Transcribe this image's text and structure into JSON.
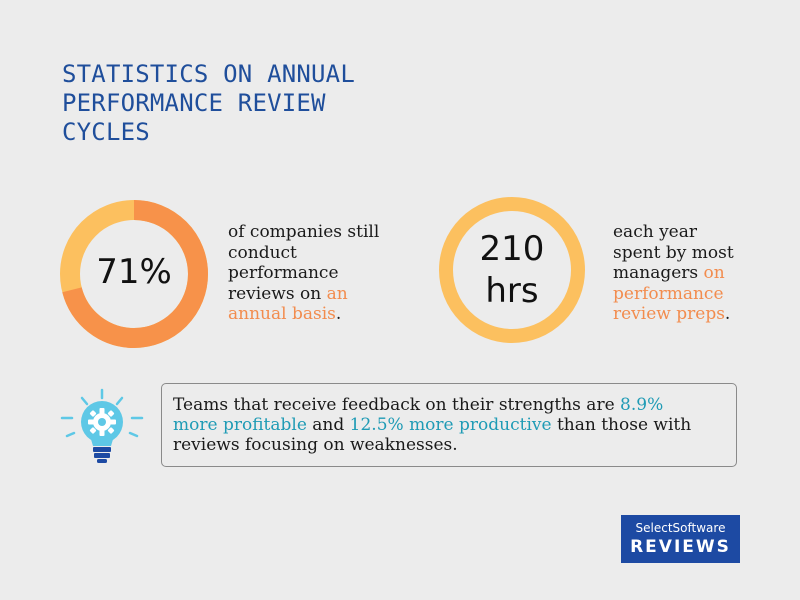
{
  "title_lines": [
    "STATISTICS ON ANNUAL",
    "PERFORMANCE REVIEW",
    "CYCLES"
  ],
  "stat1": {
    "value": "71%",
    "percent": 71,
    "desc_lines": [
      "of companies still",
      "conduct",
      "performance"
    ],
    "desc_line4_plain": "reviews on ",
    "desc_line4_highlight": "an",
    "desc_line5_highlight": "annual basis",
    "desc_line5_end": "."
  },
  "stat2": {
    "value_line1": "210",
    "value_line2": "hrs",
    "desc_lines": [
      "each year",
      "spent by most"
    ],
    "desc_line3_plain": "managers ",
    "desc_line3_highlight": "on",
    "desc_line4_highlight": "performance",
    "desc_line5_highlight": "review preps",
    "desc_line5_end": "."
  },
  "insight": {
    "l1_plain": "Teams that receive feedback on their strengths are ",
    "l1_highlight": "8.9%",
    "l2_highlight1": "more profitable",
    "l2_mid": " and ",
    "l2_highlight2": "12.5% more productive",
    "l2_end": " than those with",
    "l3": "reviews focusing on weaknesses."
  },
  "brand": {
    "line1": "SelectSoftware",
    "line2": "REVIEWS"
  },
  "colors": {
    "title": "#1f4e9b",
    "donut_light": "#fcc05f",
    "donut_dark": "#f7924a",
    "highlight_orange": "#f28c4e",
    "highlight_teal": "#1f9bb5",
    "bulb_blue": "#5ec8e6",
    "brand_bg": "#1d4aa3"
  }
}
